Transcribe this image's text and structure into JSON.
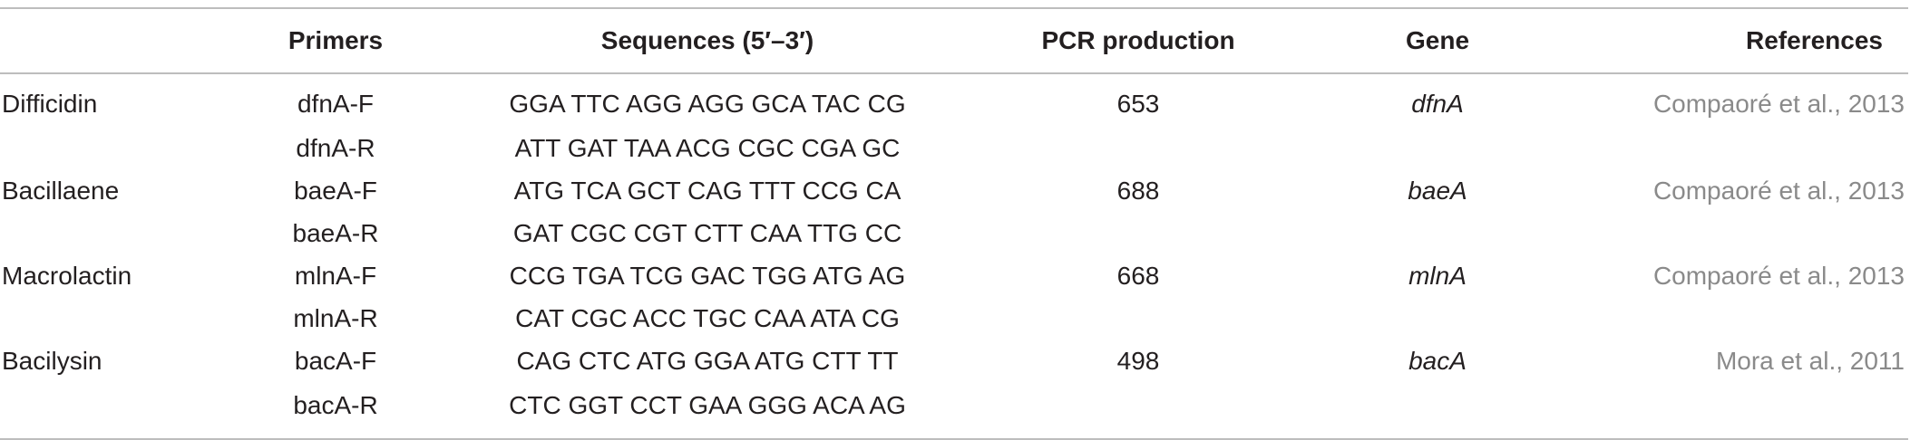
{
  "table": {
    "headers": {
      "compound": "",
      "primers": "Primers",
      "sequences": "Sequences (5′–3′)",
      "pcr": "PCR production",
      "gene": "Gene",
      "references": "References"
    },
    "rows": [
      {
        "compound": "Difficidin",
        "primer": "dfnA-F",
        "sequence": "GGA TTC AGG AGG GCA TAC CG",
        "pcr": "653",
        "gene": "dfnA",
        "reference": "Compaoré et al., 2013"
      },
      {
        "compound": "",
        "primer": "dfnA-R",
        "sequence": "ATT GAT TAA ACG CGC CGA GC",
        "pcr": "",
        "gene": "",
        "reference": ""
      },
      {
        "compound": "Bacillaene",
        "primer": "baeA-F",
        "sequence": "ATG TCA GCT CAG TTT CCG CA",
        "pcr": "688",
        "gene": "baeA",
        "reference": "Compaoré et al., 2013"
      },
      {
        "compound": "",
        "primer": "baeA-R",
        "sequence": "GAT CGC CGT CTT CAA TTG CC",
        "pcr": "",
        "gene": "",
        "reference": ""
      },
      {
        "compound": "Macrolactin",
        "primer": "mlnA-F",
        "sequence": "CCG TGA TCG GAC TGG ATG AG",
        "pcr": "668",
        "gene": "mlnA",
        "reference": "Compaoré et al., 2013"
      },
      {
        "compound": "",
        "primer": "mlnA-R",
        "sequence": "CAT CGC ACC TGC CAA ATA CG",
        "pcr": "",
        "gene": "",
        "reference": ""
      },
      {
        "compound": "Bacilysin",
        "primer": "bacA-F",
        "sequence": "CAG CTC ATG GGA ATG CTT TT",
        "pcr": "498",
        "gene": "bacA",
        "reference": "Mora et al., 2011"
      },
      {
        "compound": "",
        "primer": "bacA-R",
        "sequence": "CTC GGT CCT GAA GGG ACA AG",
        "pcr": "",
        "gene": "",
        "reference": ""
      }
    ]
  }
}
